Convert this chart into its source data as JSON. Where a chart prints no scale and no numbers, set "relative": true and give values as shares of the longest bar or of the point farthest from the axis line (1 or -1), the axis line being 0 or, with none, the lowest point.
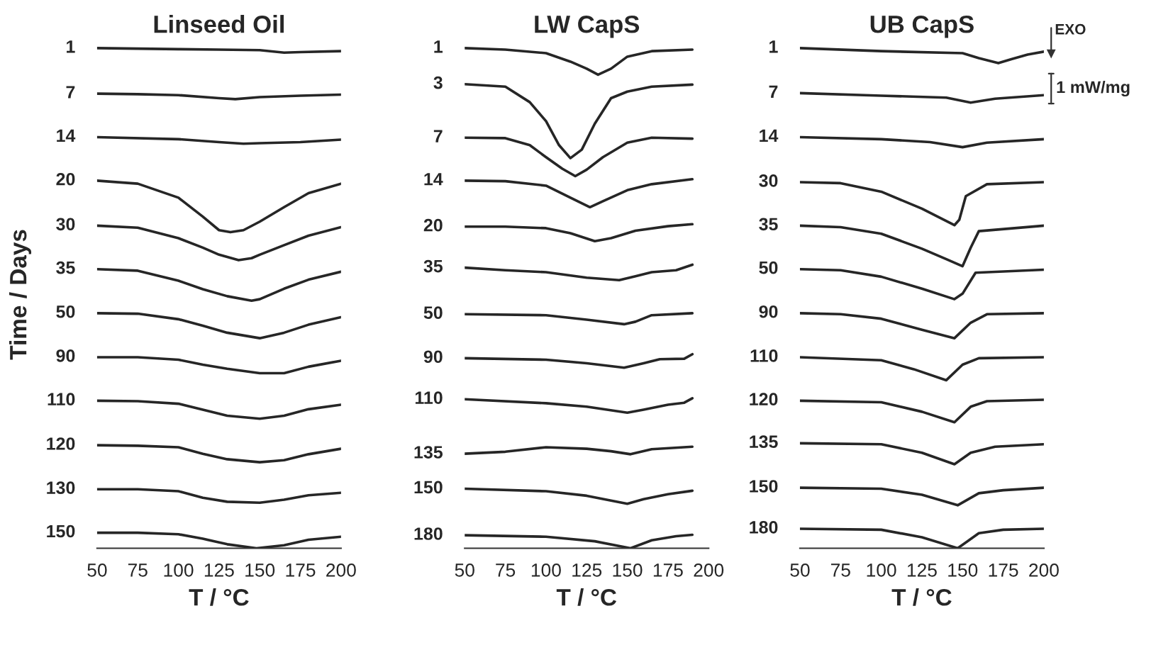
{
  "chart_data": [
    {
      "type": "line",
      "title": "Linseed Oil",
      "xlabel": "T / °C",
      "ylabel": "Time / Days",
      "relative": true,
      "xlim": [
        50,
        200
      ],
      "xticks": [
        50,
        75,
        100,
        125,
        150,
        175,
        200
      ],
      "tick_labels": "x",
      "grid": false,
      "legend": false,
      "marker": "none",
      "line_style": "solid",
      "series": [
        {
          "name": "1",
          "color": "#262626",
          "x": [
            50,
            75,
            100,
            125,
            150,
            165,
            175,
            200
          ],
          "values": [
            1.0,
            0.999,
            0.998,
            0.997,
            0.996,
            0.991,
            0.992,
            0.994
          ]
        },
        {
          "name": "7",
          "color": "#262626",
          "x": [
            50,
            75,
            100,
            125,
            135,
            150,
            175,
            200
          ],
          "values": [
            0.909,
            0.908,
            0.906,
            0.9,
            0.898,
            0.902,
            0.905,
            0.907
          ]
        },
        {
          "name": "14",
          "color": "#262626",
          "x": [
            50,
            100,
            125,
            140,
            150,
            175,
            200
          ],
          "values": [
            0.822,
            0.818,
            0.812,
            0.809,
            0.81,
            0.812,
            0.817
          ]
        },
        {
          "name": "20",
          "color": "#262626",
          "x": [
            50,
            75,
            100,
            115,
            125,
            132,
            140,
            150,
            165,
            180,
            200
          ],
          "values": [
            0.735,
            0.729,
            0.701,
            0.663,
            0.636,
            0.632,
            0.636,
            0.653,
            0.682,
            0.71,
            0.729
          ]
        },
        {
          "name": "30",
          "color": "#262626",
          "x": [
            50,
            75,
            100,
            115,
            125,
            137,
            145,
            150,
            165,
            180,
            200
          ],
          "values": [
            0.645,
            0.641,
            0.62,
            0.601,
            0.587,
            0.576,
            0.58,
            0.587,
            0.606,
            0.625,
            0.642
          ]
        },
        {
          "name": "35",
          "color": "#262626",
          "x": [
            50,
            75,
            100,
            115,
            130,
            145,
            150,
            165,
            180,
            200
          ],
          "values": [
            0.558,
            0.555,
            0.535,
            0.518,
            0.504,
            0.495,
            0.498,
            0.519,
            0.537,
            0.553
          ]
        },
        {
          "name": "50",
          "color": "#262626",
          "x": [
            50,
            75,
            100,
            115,
            130,
            150,
            165,
            180,
            200
          ],
          "values": [
            0.47,
            0.469,
            0.458,
            0.445,
            0.431,
            0.42,
            0.431,
            0.447,
            0.462
          ]
        },
        {
          "name": "90",
          "color": "#262626",
          "x": [
            50,
            75,
            100,
            115,
            130,
            150,
            165,
            180,
            200
          ],
          "values": [
            0.382,
            0.382,
            0.377,
            0.367,
            0.359,
            0.35,
            0.35,
            0.363,
            0.375
          ]
        },
        {
          "name": "110",
          "color": "#262626",
          "x": [
            50,
            75,
            100,
            115,
            130,
            150,
            165,
            180,
            200
          ],
          "values": [
            0.295,
            0.294,
            0.289,
            0.277,
            0.265,
            0.259,
            0.265,
            0.278,
            0.287
          ]
        },
        {
          "name": "120",
          "color": "#262626",
          "x": [
            50,
            75,
            100,
            115,
            130,
            150,
            165,
            180,
            200
          ],
          "values": [
            0.206,
            0.205,
            0.202,
            0.189,
            0.178,
            0.172,
            0.176,
            0.188,
            0.199
          ]
        },
        {
          "name": "130",
          "color": "#262626",
          "x": [
            50,
            75,
            100,
            115,
            130,
            150,
            165,
            180,
            200
          ],
          "values": [
            0.118,
            0.118,
            0.114,
            0.101,
            0.093,
            0.091,
            0.097,
            0.106,
            0.111
          ]
        },
        {
          "name": "150",
          "color": "#262626",
          "x": [
            50,
            75,
            100,
            115,
            130,
            148,
            165,
            180,
            200
          ],
          "values": [
            0.031,
            0.031,
            0.028,
            0.019,
            0.008,
            0.0,
            0.006,
            0.017,
            0.023
          ]
        }
      ]
    },
    {
      "type": "line",
      "title": "LW CapS",
      "xlabel": "T / °C",
      "relative": true,
      "xlim": [
        50,
        200
      ],
      "xticks": [
        50,
        75,
        100,
        125,
        150,
        175,
        200
      ],
      "tick_labels": "x",
      "grid": false,
      "legend": false,
      "marker": "none",
      "line_style": "solid",
      "series": [
        {
          "name": "1",
          "color": "#262626",
          "x": [
            50,
            75,
            100,
            115,
            125,
            132,
            140,
            150,
            165,
            190
          ],
          "values": [
            1.0,
            0.997,
            0.99,
            0.973,
            0.959,
            0.947,
            0.959,
            0.983,
            0.994,
            0.997
          ]
        },
        {
          "name": "3",
          "color": "#262626",
          "x": [
            50,
            75,
            90,
            100,
            108,
            115,
            122,
            130,
            140,
            150,
            165,
            190
          ],
          "values": [
            0.928,
            0.923,
            0.892,
            0.854,
            0.806,
            0.78,
            0.797,
            0.849,
            0.9,
            0.913,
            0.923,
            0.927
          ]
        },
        {
          "name": "7",
          "color": "#262626",
          "x": [
            50,
            75,
            90,
            100,
            110,
            118,
            125,
            135,
            150,
            165,
            190
          ],
          "values": [
            0.821,
            0.82,
            0.806,
            0.782,
            0.759,
            0.744,
            0.757,
            0.782,
            0.811,
            0.821,
            0.819
          ]
        },
        {
          "name": "14",
          "color": "#262626",
          "x": [
            50,
            75,
            100,
            115,
            127,
            135,
            150,
            165,
            190
          ],
          "values": [
            0.735,
            0.734,
            0.725,
            0.701,
            0.682,
            0.694,
            0.716,
            0.728,
            0.738
          ]
        },
        {
          "name": "20",
          "color": "#262626",
          "x": [
            50,
            75,
            100,
            115,
            130,
            140,
            155,
            175,
            190
          ],
          "values": [
            0.643,
            0.643,
            0.64,
            0.63,
            0.614,
            0.62,
            0.635,
            0.644,
            0.648
          ]
        },
        {
          "name": "35",
          "color": "#262626",
          "x": [
            50,
            75,
            100,
            125,
            145,
            155,
            165,
            180,
            190
          ],
          "values": [
            0.561,
            0.556,
            0.552,
            0.541,
            0.536,
            0.544,
            0.552,
            0.556,
            0.567
          ]
        },
        {
          "name": "50",
          "color": "#262626",
          "x": [
            50,
            100,
            125,
            148,
            155,
            165,
            190
          ],
          "values": [
            0.468,
            0.466,
            0.457,
            0.448,
            0.453,
            0.466,
            0.47
          ]
        },
        {
          "name": "90",
          "color": "#262626",
          "x": [
            50,
            100,
            125,
            148,
            160,
            170,
            185,
            190
          ],
          "values": [
            0.38,
            0.377,
            0.37,
            0.361,
            0.37,
            0.378,
            0.379,
            0.388
          ]
        },
        {
          "name": "110",
          "color": "#262626",
          "x": [
            50,
            100,
            125,
            150,
            160,
            175,
            185,
            190
          ],
          "values": [
            0.298,
            0.29,
            0.283,
            0.271,
            0.277,
            0.287,
            0.291,
            0.3
          ]
        },
        {
          "name": "135",
          "color": "#262626",
          "x": [
            50,
            75,
            100,
            125,
            140,
            152,
            165,
            190
          ],
          "values": [
            0.189,
            0.193,
            0.202,
            0.199,
            0.194,
            0.188,
            0.198,
            0.203
          ]
        },
        {
          "name": "150",
          "color": "#262626",
          "x": [
            50,
            100,
            125,
            150,
            160,
            175,
            190
          ],
          "values": [
            0.119,
            0.114,
            0.105,
            0.089,
            0.098,
            0.108,
            0.115
          ]
        },
        {
          "name": "180",
          "color": "#262626",
          "x": [
            50,
            100,
            130,
            152,
            165,
            180,
            190
          ],
          "values": [
            0.026,
            0.023,
            0.014,
            0.0,
            0.016,
            0.024,
            0.027
          ]
        }
      ]
    },
    {
      "type": "line",
      "title": "UB CapS",
      "xlabel": "T / °C",
      "relative": true,
      "xlim": [
        50,
        200
      ],
      "xticks": [
        50,
        75,
        100,
        125,
        150,
        175,
        200
      ],
      "tick_labels": "x",
      "grid": false,
      "legend": false,
      "marker": "none",
      "line_style": "solid",
      "annotations": [
        "EXO",
        "1 mW/mg"
      ],
      "series": [
        {
          "name": "1",
          "color": "#262626",
          "x": [
            50,
            100,
            150,
            160,
            172,
            180,
            190,
            200
          ],
          "values": [
            1.0,
            0.994,
            0.99,
            0.98,
            0.97,
            0.978,
            0.987,
            0.993
          ]
        },
        {
          "name": "7",
          "color": "#262626",
          "x": [
            50,
            100,
            140,
            155,
            170,
            200
          ],
          "values": [
            0.91,
            0.905,
            0.901,
            0.891,
            0.899,
            0.906
          ]
        },
        {
          "name": "14",
          "color": "#262626",
          "x": [
            50,
            100,
            130,
            150,
            165,
            200
          ],
          "values": [
            0.822,
            0.818,
            0.812,
            0.802,
            0.811,
            0.818
          ]
        },
        {
          "name": "30",
          "color": "#262626",
          "x": [
            50,
            75,
            100,
            125,
            145,
            148,
            152,
            165,
            200
          ],
          "values": [
            0.732,
            0.73,
            0.713,
            0.679,
            0.646,
            0.657,
            0.704,
            0.728,
            0.732
          ]
        },
        {
          "name": "35",
          "color": "#262626",
          "x": [
            50,
            75,
            100,
            125,
            140,
            150,
            155,
            160,
            200
          ],
          "values": [
            0.645,
            0.642,
            0.629,
            0.599,
            0.578,
            0.564,
            0.601,
            0.634,
            0.645
          ]
        },
        {
          "name": "50",
          "color": "#262626",
          "x": [
            50,
            75,
            100,
            125,
            145,
            150,
            158,
            200
          ],
          "values": [
            0.558,
            0.556,
            0.543,
            0.519,
            0.498,
            0.509,
            0.551,
            0.557
          ]
        },
        {
          "name": "90",
          "color": "#262626",
          "x": [
            50,
            75,
            100,
            125,
            145,
            155,
            165,
            200
          ],
          "values": [
            0.47,
            0.468,
            0.459,
            0.437,
            0.42,
            0.451,
            0.468,
            0.47
          ]
        },
        {
          "name": "110",
          "color": "#262626",
          "x": [
            50,
            100,
            120,
            140,
            150,
            160,
            200
          ],
          "values": [
            0.382,
            0.376,
            0.358,
            0.336,
            0.367,
            0.38,
            0.382
          ]
        },
        {
          "name": "120",
          "color": "#262626",
          "x": [
            50,
            100,
            125,
            145,
            155,
            165,
            200
          ],
          "values": [
            0.295,
            0.292,
            0.273,
            0.252,
            0.283,
            0.294,
            0.297
          ]
        },
        {
          "name": "135",
          "color": "#262626",
          "x": [
            50,
            100,
            125,
            145,
            155,
            170,
            200
          ],
          "values": [
            0.21,
            0.208,
            0.191,
            0.168,
            0.191,
            0.203,
            0.208
          ]
        },
        {
          "name": "150",
          "color": "#262626",
          "x": [
            50,
            100,
            125,
            147,
            160,
            175,
            200
          ],
          "values": [
            0.121,
            0.119,
            0.107,
            0.086,
            0.11,
            0.116,
            0.121
          ]
        },
        {
          "name": "180",
          "color": "#262626",
          "x": [
            50,
            100,
            125,
            147,
            160,
            175,
            200
          ],
          "values": [
            0.039,
            0.037,
            0.022,
            0.0,
            0.03,
            0.037,
            0.039
          ]
        }
      ]
    }
  ]
}
